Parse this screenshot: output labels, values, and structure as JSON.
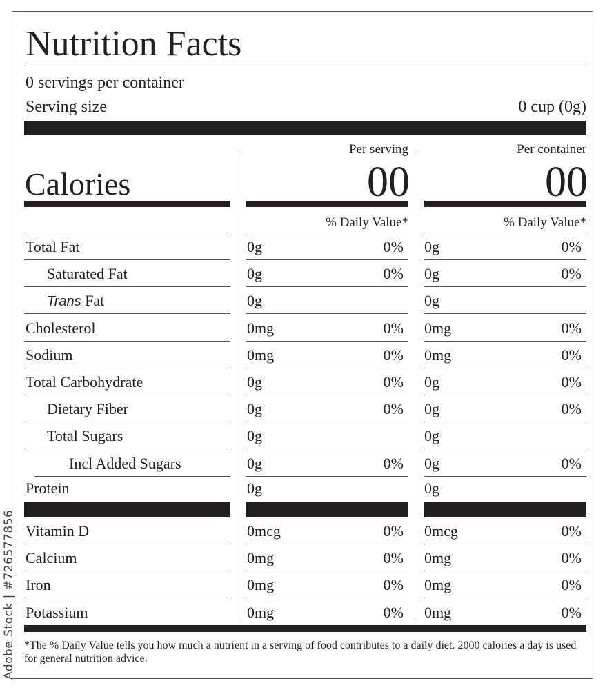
{
  "title": "Nutrition Facts",
  "servings_per_container": "0 servings per container",
  "serving_size_label": "Serving size",
  "serving_size_value": "0 cup (0g)",
  "calories_label": "Calories",
  "columns": [
    {
      "header": "Per serving",
      "calories": "00",
      "dv_header": "% Daily Value*"
    },
    {
      "header": "Per container",
      "calories": "00",
      "dv_header": "% Daily Value*"
    }
  ],
  "nutrients": [
    {
      "label": "Total Fat",
      "indent": 0,
      "serving": "0g",
      "serving_dv": "0%",
      "container": "0g",
      "container_dv": "0%"
    },
    {
      "label": "Saturated Fat",
      "indent": 1,
      "serving": "0g",
      "serving_dv": "0%",
      "container": "0g",
      "container_dv": "0%"
    },
    {
      "label": "Fat",
      "italic_prefix": "Trans",
      "indent": 1,
      "serving": "0g",
      "serving_dv": "",
      "container": "0g",
      "container_dv": ""
    },
    {
      "label": "Cholesterol",
      "indent": 0,
      "serving": "0mg",
      "serving_dv": "0%",
      "container": "0mg",
      "container_dv": "0%"
    },
    {
      "label": "Sodium",
      "indent": 0,
      "serving": "0mg",
      "serving_dv": "0%",
      "container": "0mg",
      "container_dv": "0%"
    },
    {
      "label": "Total Carbohydrate",
      "indent": 0,
      "serving": "0g",
      "serving_dv": "0%",
      "container": "0g",
      "container_dv": "0%"
    },
    {
      "label": "Dietary Fiber",
      "indent": 1,
      "serving": "0g",
      "serving_dv": "0%",
      "container": "0g",
      "container_dv": "0%"
    },
    {
      "label": "Total Sugars",
      "indent": 1,
      "serving": "0g",
      "serving_dv": "",
      "container": "0g",
      "container_dv": ""
    },
    {
      "label": "Incl Added Sugars",
      "indent": 2,
      "serving": "0g",
      "serving_dv": "0%",
      "container": "0g",
      "container_dv": "0%"
    },
    {
      "label": "Protein",
      "indent": 0,
      "serving": "0g",
      "serving_dv": "",
      "container": "0g",
      "container_dv": ""
    }
  ],
  "vitamins": [
    {
      "label": "Vitamin D",
      "serving": "0mcg",
      "serving_dv": "0%",
      "container": "0mcg",
      "container_dv": "0%"
    },
    {
      "label": "Calcium",
      "serving": "0mg",
      "serving_dv": "0%",
      "container": "0mg",
      "container_dv": "0%"
    },
    {
      "label": "Iron",
      "serving": "0mg",
      "serving_dv": "0%",
      "container": "0mg",
      "container_dv": "0%"
    },
    {
      "label": "Potassium",
      "serving": "0mg",
      "serving_dv": "0%",
      "container": "0mg",
      "container_dv": "0%"
    }
  ],
  "footnote": "*The % Daily Value tells you how much a nutrient in a serving of food contributes to a daily diet. 2000 calories a day is used for general nutrition advice.",
  "watermark": "Adobe Stock | #726577856"
}
